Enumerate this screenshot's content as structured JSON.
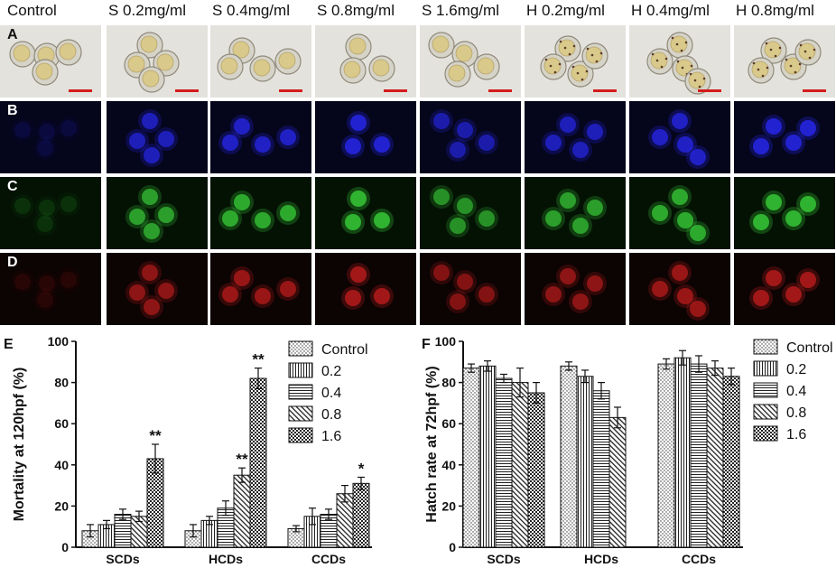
{
  "columns": [
    "Control",
    "S 0.2mg/ml",
    "S 0.4mg/ml",
    "S 0.8mg/ml",
    "S 1.6mg/ml",
    "H 0.2mg/ml",
    "H 0.4mg/ml",
    "H 0.8mg/ml"
  ],
  "rows": [
    {
      "label": "A",
      "kind": "brightfield",
      "bg": "#e4e2dc"
    },
    {
      "label": "B",
      "kind": "dapi",
      "bg": "#05051c",
      "fg": "#2a2aff"
    },
    {
      "label": "C",
      "kind": "gfp",
      "bg": "#041204",
      "fg": "#3cdc3c"
    },
    {
      "label": "D",
      "kind": "rfp",
      "bg": "#0c0303",
      "fg": "#c81e1e"
    }
  ],
  "panel_e_letter": "E",
  "panel_f_letter": "F",
  "chart_data": [
    {
      "type": "bar",
      "panel": "E",
      "categories": [
        "SCDs",
        "HCDs",
        "CCDs"
      ],
      "ylabel": "Mortality at 120hpf (%)",
      "ylim": [
        0,
        100
      ],
      "yticks": [
        0,
        20,
        40,
        60,
        80,
        100
      ],
      "legend_position": "top-right",
      "series": [
        {
          "name": "Control",
          "values": [
            8,
            8,
            9
          ],
          "errors": [
            3,
            3,
            1.5
          ],
          "annotations": [
            "",
            "",
            ""
          ]
        },
        {
          "name": "0.2",
          "values": [
            11,
            13,
            15
          ],
          "errors": [
            2,
            2,
            4
          ],
          "annotations": [
            "",
            "",
            ""
          ]
        },
        {
          "name": "0.4",
          "values": [
            16,
            19,
            16
          ],
          "errors": [
            2.5,
            3.5,
            2.5
          ],
          "annotations": [
            "",
            "",
            ""
          ]
        },
        {
          "name": "0.8",
          "values": [
            15,
            35,
            26
          ],
          "errors": [
            2.5,
            3.5,
            4
          ],
          "annotations": [
            "",
            "**",
            ""
          ]
        },
        {
          "name": "1.6",
          "values": [
            43,
            82,
            31
          ],
          "errors": [
            7,
            5,
            3
          ],
          "annotations": [
            "**",
            "**",
            "*"
          ]
        }
      ]
    },
    {
      "type": "bar",
      "panel": "F",
      "categories": [
        "SCDs",
        "HCDs",
        "CCDs"
      ],
      "ylabel": "Hatch rate at 72hpf (%)",
      "ylim": [
        0,
        100
      ],
      "yticks": [
        0,
        20,
        40,
        60,
        80,
        100
      ],
      "legend_position": "top-right",
      "series": [
        {
          "name": "Control",
          "values": [
            87,
            88,
            89
          ],
          "errors": [
            2,
            2,
            2.5
          ]
        },
        {
          "name": "0.2",
          "values": [
            88,
            83,
            92
          ],
          "errors": [
            2.5,
            3,
            3.5
          ]
        },
        {
          "name": "0.4",
          "values": [
            82,
            76,
            89
          ],
          "errors": [
            2,
            4,
            4
          ]
        },
        {
          "name": "0.8",
          "values": [
            80,
            63,
            87
          ],
          "errors": [
            7,
            5,
            3.5
          ]
        },
        {
          "name": "1.6",
          "values": [
            75,
            0,
            83
          ],
          "errors": [
            5,
            0,
            4
          ]
        }
      ]
    }
  ]
}
